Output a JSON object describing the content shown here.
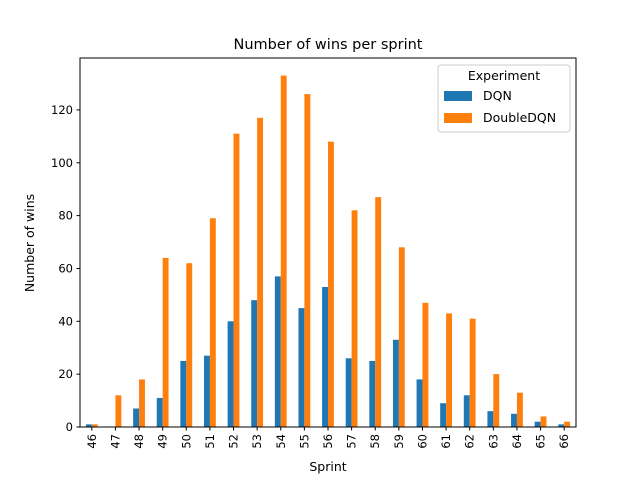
{
  "chart_data": {
    "type": "bar",
    "title": "Number of wins per sprint",
    "xlabel": "Sprint",
    "ylabel": "Number of wins",
    "categories": [
      "46",
      "47",
      "48",
      "49",
      "50",
      "51",
      "52",
      "53",
      "54",
      "55",
      "56",
      "57",
      "58",
      "59",
      "60",
      "61",
      "62",
      "63",
      "64",
      "65",
      "66"
    ],
    "series": [
      {
        "name": "DQN",
        "color": "#1f77b4",
        "values": [
          1,
          0,
          7,
          11,
          25,
          27,
          40,
          48,
          57,
          45,
          53,
          26,
          25,
          33,
          18,
          9,
          12,
          6,
          5,
          2,
          1
        ]
      },
      {
        "name": "DoubleDQN",
        "color": "#ff7f0e",
        "values": [
          1,
          12,
          18,
          64,
          62,
          79,
          111,
          117,
          133,
          126,
          108,
          82,
          87,
          68,
          47,
          43,
          41,
          20,
          13,
          4,
          2
        ]
      }
    ],
    "ylim": [
      0,
      139.65
    ],
    "yticks": [
      0,
      20,
      40,
      60,
      80,
      100,
      120
    ],
    "grid": false,
    "legend": {
      "title": "Experiment",
      "position": "top-right"
    }
  }
}
